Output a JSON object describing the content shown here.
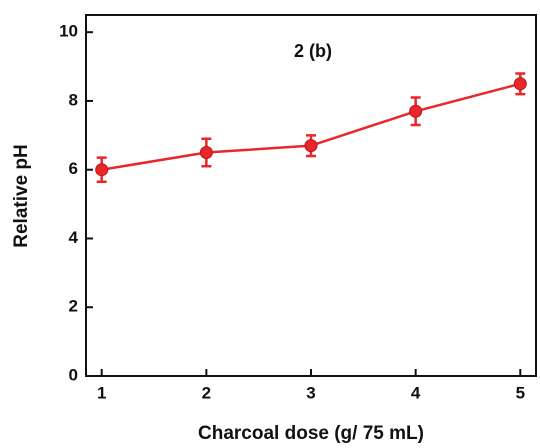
{
  "chart_data": {
    "type": "line",
    "annotation": "2 (b)",
    "x_label": "Charcoal dose (g/ 75 mL)",
    "y_label": "Relative pH",
    "x": [
      1,
      2,
      3,
      4,
      5
    ],
    "series": [
      {
        "color": "#e8272a",
        "values": [
          6.0,
          6.5,
          6.7,
          7.7,
          8.5
        ],
        "errors": [
          0.35,
          0.4,
          0.3,
          0.4,
          0.3
        ]
      }
    ],
    "xlim": [
      0.85,
      5.15
    ],
    "ylim": [
      0,
      10.5
    ],
    "xticks": [
      1,
      2,
      3,
      4,
      5
    ],
    "yticks": [
      0,
      2,
      4,
      6,
      8,
      10
    ]
  }
}
